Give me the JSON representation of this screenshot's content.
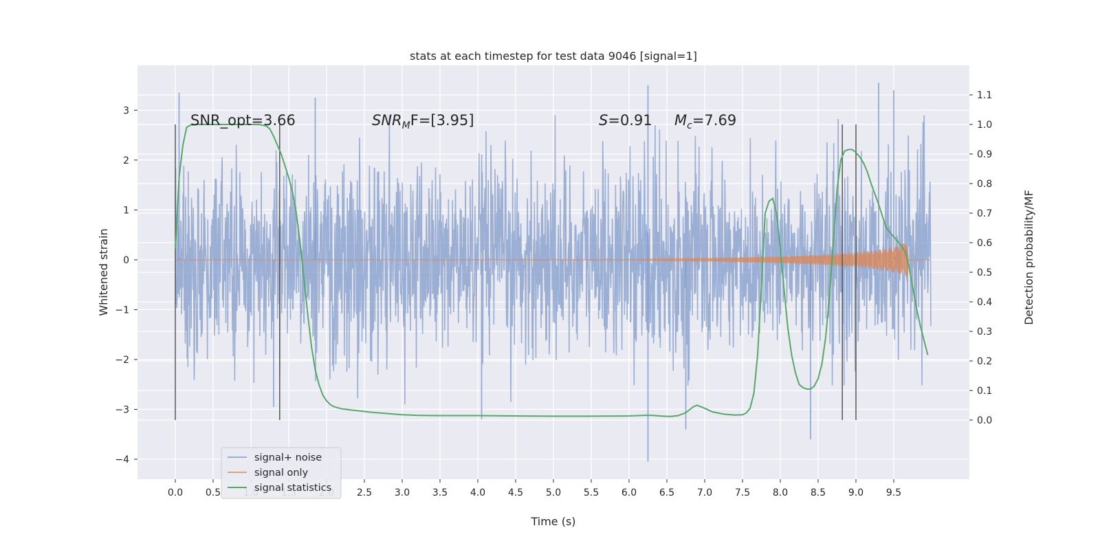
{
  "chart_data": {
    "type": "line",
    "title": "stats at each timestep for test data 9046 [signal=1]",
    "xlabel": "Time (s)",
    "ylabel": "Whitened strain",
    "y2label": "Detection probability/MF",
    "xlim": [
      -0.5,
      10.5
    ],
    "ylim": [
      -4.4,
      3.9
    ],
    "y2lim": [
      -0.2,
      1.2
    ],
    "xticks": [
      0.0,
      0.5,
      1.0,
      1.5,
      2.0,
      2.5,
      3.0,
      3.5,
      4.0,
      4.5,
      5.0,
      5.5,
      6.0,
      6.5,
      7.0,
      7.5,
      8.0,
      8.5,
      9.0,
      9.5
    ],
    "xtick_labels": [
      "0.0",
      "0.5",
      "1.0",
      "1.5",
      "2.0",
      "2.5",
      "3.0",
      "3.5",
      "4.0",
      "4.5",
      "5.0",
      "5.5",
      "6.0",
      "6.5",
      "7.0",
      "7.5",
      "8.0",
      "8.5",
      "9.0",
      "9.5"
    ],
    "yticks": [
      -4,
      -3,
      -2,
      -1,
      0,
      1,
      2,
      3
    ],
    "ytick_labels": [
      "−4",
      "−3",
      "−2",
      "−1",
      "0",
      "1",
      "2",
      "3"
    ],
    "y2ticks": [
      0.0,
      0.1,
      0.2,
      0.3,
      0.4,
      0.5,
      0.6,
      0.7,
      0.8,
      0.9,
      1.0,
      1.1
    ],
    "y2tick_labels": [
      "0.0",
      "0.1",
      "0.2",
      "0.3",
      "0.4",
      "0.5",
      "0.6",
      "0.7",
      "0.8",
      "0.9",
      "1.0",
      "1.1"
    ],
    "grid": true,
    "legend_position": "lower-left",
    "series": [
      {
        "name": "signal+ noise",
        "axis": "left",
        "color": "#8099c9",
        "x_range": [
          0.0,
          9.99
        ],
        "sample_count": 2048,
        "envelope_approx": [
          2.1,
          -2.1
        ],
        "peaks": [
          [
            0.05,
            3.35
          ],
          [
            1.85,
            3.25
          ],
          [
            6.25,
            3.5
          ],
          [
            9.3,
            3.55
          ],
          [
            9.5,
            3.4
          ],
          [
            1.3,
            -2.95
          ],
          [
            6.25,
            -4.05
          ],
          [
            8.4,
            -3.6
          ],
          [
            6.75,
            -3.4
          ],
          [
            4.05,
            -3.2
          ]
        ]
      },
      {
        "name": "signal only",
        "axis": "left",
        "color": "#dd8452",
        "x_range": [
          0.0,
          9.99
        ],
        "chirp_amplitude": [
          [
            0.0,
            0.0
          ],
          [
            6.0,
            0.005
          ],
          [
            7.0,
            0.03
          ],
          [
            8.0,
            0.07
          ],
          [
            8.5,
            0.1
          ],
          [
            9.0,
            0.15
          ],
          [
            9.4,
            0.22
          ],
          [
            9.6,
            0.3
          ],
          [
            9.68,
            0.38
          ],
          [
            9.7,
            0.0
          ],
          [
            9.99,
            0.0
          ]
        ]
      },
      {
        "name": "signal statistics",
        "axis": "right",
        "color": "#55a868",
        "x": [
          0.0,
          0.05,
          0.1,
          0.15,
          0.2,
          0.3,
          0.5,
          0.8,
          1.0,
          1.1,
          1.2,
          1.25,
          1.3,
          1.35,
          1.4,
          1.45,
          1.5,
          1.55,
          1.6,
          1.65,
          1.7,
          1.75,
          1.8,
          1.85,
          1.9,
          1.95,
          2.0,
          2.05,
          2.1,
          2.2,
          2.4,
          2.6,
          2.8,
          3.0,
          3.2,
          3.5,
          4.0,
          4.5,
          5.0,
          5.5,
          6.0,
          6.2,
          6.3,
          6.45,
          6.55,
          6.65,
          6.75,
          6.8,
          6.85,
          6.9,
          7.0,
          7.1,
          7.25,
          7.4,
          7.5,
          7.55,
          7.6,
          7.65,
          7.7,
          7.75,
          7.8,
          7.85,
          7.9,
          7.95,
          8.0,
          8.05,
          8.1,
          8.15,
          8.2,
          8.25,
          8.3,
          8.35,
          8.4,
          8.45,
          8.5,
          8.55,
          8.6,
          8.65,
          8.7,
          8.75,
          8.8,
          8.85,
          8.9,
          8.95,
          9.0,
          9.05,
          9.1,
          9.15,
          9.2,
          9.3,
          9.4,
          9.5,
          9.6,
          9.65,
          9.7,
          9.75,
          9.8,
          9.85,
          9.9,
          9.95
        ],
        "values": [
          0.58,
          0.82,
          0.93,
          0.99,
          0.998,
          1.0,
          1.0,
          1.0,
          1.0,
          1.0,
          0.995,
          0.985,
          0.96,
          0.93,
          0.9,
          0.86,
          0.82,
          0.77,
          0.7,
          0.6,
          0.48,
          0.36,
          0.25,
          0.17,
          0.12,
          0.085,
          0.065,
          0.052,
          0.045,
          0.038,
          0.032,
          0.026,
          0.022,
          0.018,
          0.016,
          0.015,
          0.015,
          0.014,
          0.013,
          0.013,
          0.014,
          0.016,
          0.016,
          0.013,
          0.012,
          0.015,
          0.025,
          0.035,
          0.045,
          0.05,
          0.04,
          0.028,
          0.02,
          0.017,
          0.018,
          0.024,
          0.04,
          0.09,
          0.22,
          0.45,
          0.7,
          0.74,
          0.75,
          0.7,
          0.58,
          0.44,
          0.31,
          0.22,
          0.16,
          0.12,
          0.11,
          0.105,
          0.105,
          0.115,
          0.14,
          0.19,
          0.28,
          0.42,
          0.6,
          0.78,
          0.88,
          0.91,
          0.915,
          0.915,
          0.905,
          0.89,
          0.87,
          0.84,
          0.8,
          0.73,
          0.65,
          0.62,
          0.59,
          0.57,
          0.52,
          0.45,
          0.38,
          0.32,
          0.27,
          0.22
        ]
      }
    ],
    "vertical_lines_x": [
      0.0,
      1.38,
      8.82,
      9.0
    ],
    "annotations": [
      {
        "x": 0.2,
        "y": 2.7,
        "text": "SNR_opt=3.66"
      },
      {
        "x": 2.6,
        "y": 2.7,
        "base": "SNR",
        "sub": "M",
        "after": "F=[3.95]"
      },
      {
        "x": 5.6,
        "y": 2.7,
        "base": "S",
        "after": "=0.91"
      },
      {
        "x": 6.6,
        "y": 2.7,
        "base": "M",
        "sub": "c",
        "after": "=7.69"
      }
    ]
  }
}
